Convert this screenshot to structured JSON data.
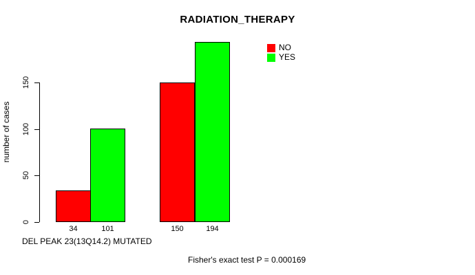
{
  "chart_data": {
    "type": "bar",
    "title": "RADIATION_THERAPY",
    "ylabel": "number of cases",
    "xlabel": "DEL PEAK 23(13Q14.2) MUTATED",
    "footnote": "Fisher's exact test P = 0.000169",
    "y_ticks": [
      0,
      50,
      100,
      150
    ],
    "ylim": [
      0,
      196
    ],
    "grid": false,
    "legend_position": "top-right",
    "series": [
      {
        "name": "NO",
        "color": "#ff0000",
        "values": [
          34,
          150
        ]
      },
      {
        "name": "YES",
        "color": "#00ff00",
        "values": [
          101,
          194
        ]
      }
    ],
    "value_labels": [
      "34",
      "101",
      "150",
      "194"
    ],
    "colors": {
      "bar_border": "#000000",
      "axis": "#000000",
      "text": "#000000",
      "background": "#ffffff"
    }
  }
}
